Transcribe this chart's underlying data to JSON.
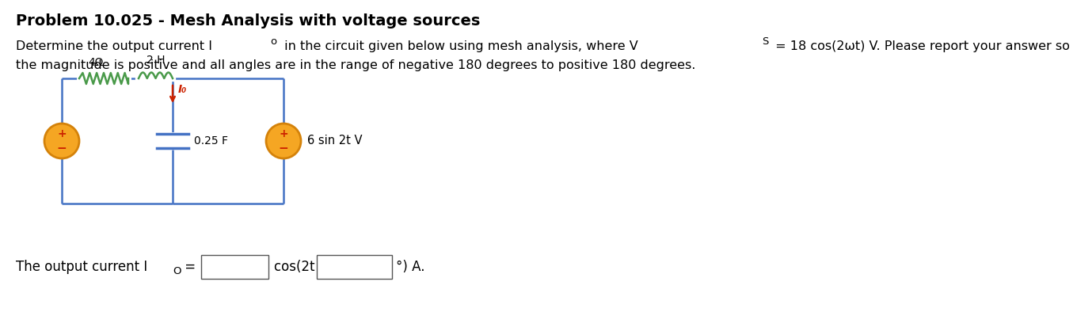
{
  "title": "Problem 10.025 - Mesh Analysis with voltage sources",
  "line1a": "Determine the output current I",
  "line1b": "o",
  "line1c": " in the circuit given below using mesh analysis, where V",
  "line1d": "S",
  "line1e": " = 18 cos(2ωt) V. Please report your answer so",
  "line2": "the magnitude is positive and all angles are in the range of negative 180 degrees to positive 180 degrees.",
  "label_4ohm": "4Ω",
  "label_2H": "2 H",
  "label_cap": "0.25 F",
  "label_lo": "I₀",
  "label_isource": "6 sin 2t V",
  "circuit_color": "#4472c4",
  "resistor_color": "#4a9a4a",
  "inductor_color": "#4a9a4a",
  "source_fill": "#f5a623",
  "source_edge": "#d4820a",
  "arrow_color": "#cc2200",
  "background": "#ffffff",
  "title_fontsize": 14,
  "body_fontsize": 11.5
}
